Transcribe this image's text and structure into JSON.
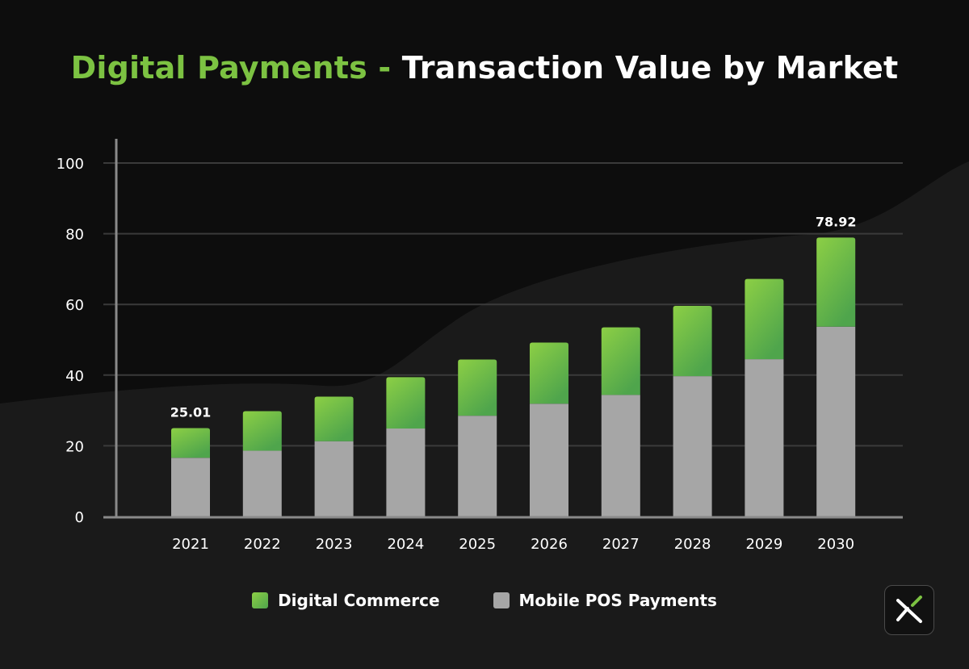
{
  "title": {
    "highlight": "Digital Payments -",
    "rest": "Transaction Value by Market"
  },
  "colors": {
    "digital_commerce_top": "#8ccf45",
    "digital_commerce_bottom": "#4fa54c",
    "mobile_pos": "#a6a6a6",
    "accent": "#7cc242",
    "grid": "#3a3a3a",
    "axis": "#8a8a8a"
  },
  "chart_data": {
    "type": "bar",
    "stacked": true,
    "categories": [
      "2021",
      "2022",
      "2023",
      "2024",
      "2025",
      "2026",
      "2027",
      "2028",
      "2029",
      "2030"
    ],
    "series": [
      {
        "name": "Mobile POS Payments",
        "values": [
          16.6,
          18.6,
          21.3,
          24.9,
          28.5,
          31.9,
          34.4,
          39.7,
          44.5,
          53.7
        ]
      },
      {
        "name": "Digital Commerce",
        "values": [
          8.4,
          11.2,
          12.6,
          14.5,
          15.9,
          17.3,
          19.1,
          19.9,
          22.7,
          25.2
        ]
      }
    ],
    "totals_labels": {
      "2021": "25.01",
      "2030": "78.92"
    },
    "ylim": [
      0,
      100
    ],
    "yticks": [
      0,
      20,
      40,
      60,
      80,
      100
    ],
    "grid": true,
    "xlabel": "",
    "ylabel": "",
    "legend_position": "bottom-center"
  },
  "legend": [
    {
      "label": "Digital Commerce",
      "color_key": "digital_commerce_bottom"
    },
    {
      "label": "Mobile POS Payments",
      "color_key": "mobile_pos"
    }
  ],
  "logo_icon": "x-arrow-logo-icon"
}
